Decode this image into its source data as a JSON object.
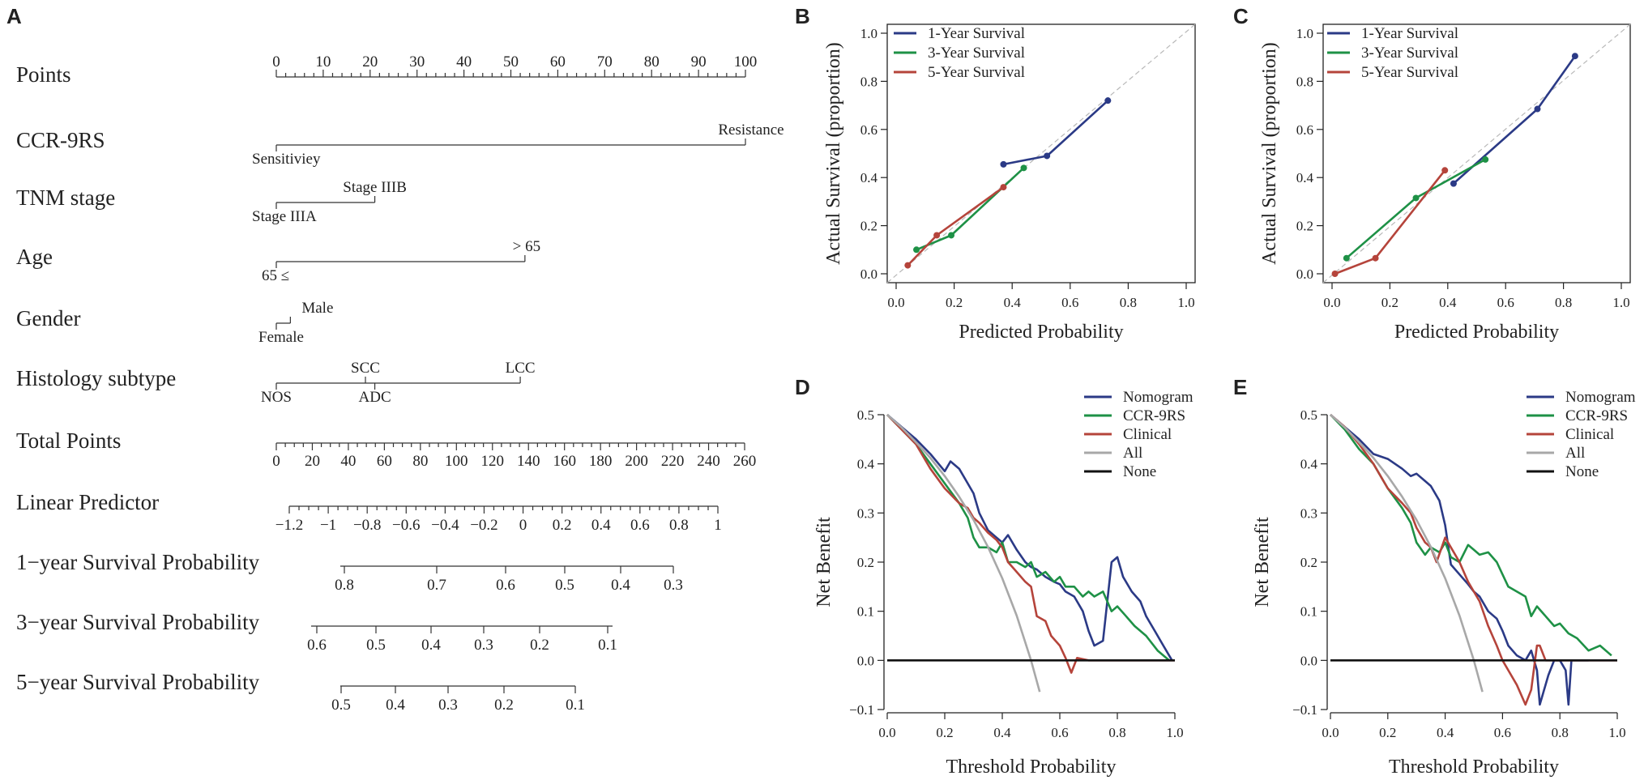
{
  "panel_letters": [
    "A",
    "B",
    "C",
    "D",
    "E"
  ],
  "chart_data": [
    {
      "panel": "A",
      "type": "nomogram",
      "rows": [
        {
          "label": "Points",
          "min": 0,
          "max": 100,
          "ticks": [
            "0",
            "10",
            "20",
            "30",
            "40",
            "50",
            "60",
            "70",
            "80",
            "90",
            "100"
          ]
        },
        {
          "label": "CCR-9RS",
          "levels": [
            {
              "name": "Sensitiviey",
              "points": 0
            },
            {
              "name": "Resistance",
              "points": 100
            }
          ]
        },
        {
          "label": "TNM stage",
          "levels": [
            {
              "name": "Stage IIIA",
              "points": 0
            },
            {
              "name": "Stage IIIB",
              "points": 21
            }
          ]
        },
        {
          "label": "Age",
          "levels": [
            {
              "name": "65 ≤",
              "points": 0
            },
            {
              "name": "> 65",
              "points": 53
            }
          ]
        },
        {
          "label": "Gender",
          "levels": [
            {
              "name": "Female",
              "points": 0
            },
            {
              "name": "Male",
              "points": 3
            }
          ]
        },
        {
          "label": "Histology subtype",
          "levels": [
            {
              "name": "NOS",
              "points": 0
            },
            {
              "name": "SCC",
              "points": 19
            },
            {
              "name": "ADC",
              "points": 21
            },
            {
              "name": "LCC",
              "points": 52
            }
          ]
        },
        {
          "label": "Total Points",
          "min": 0,
          "max": 260,
          "ticks": [
            "0",
            "20",
            "40",
            "60",
            "80",
            "100",
            "120",
            "140",
            "160",
            "180",
            "200",
            "220",
            "240",
            "260"
          ]
        },
        {
          "label": "Linear Predictor",
          "ticks": [
            "−1.2",
            "−1",
            "−0.8",
            "−0.6",
            "−0.4",
            "−0.2",
            "0",
            "0.2",
            "0.4",
            "0.6",
            "0.8",
            "1"
          ]
        },
        {
          "label": "1−year Survival Probability",
          "ticks": [
            "0.8",
            "0.7",
            "0.6",
            "0.5",
            "0.4",
            "0.3"
          ]
        },
        {
          "label": "3−year Survival Probability",
          "ticks": [
            "0.6",
            "0.5",
            "0.4",
            "0.3",
            "0.2",
            "0.1"
          ]
        },
        {
          "label": "5−year Survival Probability",
          "ticks": [
            "0.5",
            "0.4",
            "0.3",
            "0.2",
            "0.1"
          ]
        }
      ]
    },
    {
      "panel": "B",
      "type": "line",
      "title": "",
      "xlabel": "Predicted Probability",
      "ylabel": "Actual Survival (proportion)",
      "xlim": [
        0,
        1
      ],
      "ylim": [
        0,
        1
      ],
      "xticks": [
        "0.0",
        "0.2",
        "0.4",
        "0.6",
        "0.8",
        "1.0"
      ],
      "yticks": [
        "0.0",
        "0.2",
        "0.4",
        "0.6",
        "0.8",
        "1.0"
      ],
      "legend": "top-left",
      "reference_line": "diagonal",
      "series": [
        {
          "name": "1-Year Survival",
          "color": "#2b3a86",
          "x": [
            0.37,
            0.52,
            0.73
          ],
          "y": [
            0.455,
            0.49,
            0.72
          ]
        },
        {
          "name": "3-Year Survival",
          "color": "#1e9146",
          "x": [
            0.07,
            0.19,
            0.44
          ],
          "y": [
            0.1,
            0.16,
            0.44
          ]
        },
        {
          "name": "5-Year Survival",
          "color": "#b5443b",
          "x": [
            0.04,
            0.14,
            0.37
          ],
          "y": [
            0.035,
            0.16,
            0.36
          ]
        }
      ]
    },
    {
      "panel": "C",
      "type": "line",
      "title": "",
      "xlabel": "Predicted Probability",
      "ylabel": "Actual Survival (proportion)",
      "xlim": [
        0,
        1
      ],
      "ylim": [
        0,
        1
      ],
      "xticks": [
        "0.0",
        "0.2",
        "0.4",
        "0.6",
        "0.8",
        "1.0"
      ],
      "yticks": [
        "0.0",
        "0.2",
        "0.4",
        "0.6",
        "0.8",
        "1.0"
      ],
      "legend": "top-left",
      "reference_line": "diagonal",
      "series": [
        {
          "name": "1-Year Survival",
          "color": "#2b3a86",
          "x": [
            0.42,
            0.71,
            0.84
          ],
          "y": [
            0.375,
            0.685,
            0.905
          ]
        },
        {
          "name": "3-Year Survival",
          "color": "#1e9146",
          "x": [
            0.05,
            0.29,
            0.53
          ],
          "y": [
            0.065,
            0.315,
            0.475
          ]
        },
        {
          "name": "5-Year Survival",
          "color": "#b5443b",
          "x": [
            0.01,
            0.15,
            0.39
          ],
          "y": [
            0.0,
            0.065,
            0.43
          ]
        }
      ]
    },
    {
      "panel": "D",
      "type": "line",
      "title": "",
      "xlabel": "Threshold Probability",
      "ylabel": "Net Benefit",
      "xlim": [
        0,
        1
      ],
      "ylim": [
        -0.1,
        0.5
      ],
      "xticks": [
        "0.0",
        "0.2",
        "0.4",
        "0.6",
        "0.8",
        "1.0"
      ],
      "yticks": [
        "−0.1",
        "0.0",
        "0.1",
        "0.2",
        "0.3",
        "0.4",
        "0.5"
      ],
      "legend": "top-right",
      "series": [
        {
          "name": "Nomogram",
          "color": "#2b3a86",
          "x": [
            0,
            0.05,
            0.1,
            0.15,
            0.2,
            0.22,
            0.25,
            0.28,
            0.3,
            0.32,
            0.35,
            0.38,
            0.4,
            0.42,
            0.45,
            0.48,
            0.5,
            0.52,
            0.55,
            0.58,
            0.6,
            0.62,
            0.65,
            0.68,
            0.7,
            0.72,
            0.75,
            0.78,
            0.8,
            0.82,
            0.85,
            0.88,
            0.9,
            0.93,
            0.96,
            0.99
          ],
          "y": [
            0.5,
            0.475,
            0.45,
            0.42,
            0.385,
            0.405,
            0.39,
            0.36,
            0.34,
            0.3,
            0.265,
            0.25,
            0.24,
            0.255,
            0.225,
            0.2,
            0.19,
            0.185,
            0.17,
            0.16,
            0.155,
            0.14,
            0.13,
            0.1,
            0.06,
            0.03,
            0.04,
            0.2,
            0.21,
            0.17,
            0.14,
            0.12,
            0.09,
            0.06,
            0.03,
            0.0
          ]
        },
        {
          "name": "CCR-9RS",
          "color": "#1e9146",
          "x": [
            0,
            0.05,
            0.1,
            0.15,
            0.2,
            0.25,
            0.28,
            0.3,
            0.32,
            0.35,
            0.38,
            0.4,
            0.42,
            0.45,
            0.48,
            0.5,
            0.52,
            0.55,
            0.58,
            0.6,
            0.62,
            0.65,
            0.68,
            0.7,
            0.72,
            0.75,
            0.78,
            0.8,
            0.83,
            0.86,
            0.9,
            0.94,
            0.98
          ],
          "y": [
            0.5,
            0.47,
            0.44,
            0.4,
            0.36,
            0.32,
            0.29,
            0.25,
            0.23,
            0.23,
            0.22,
            0.24,
            0.2,
            0.2,
            0.19,
            0.2,
            0.17,
            0.18,
            0.16,
            0.17,
            0.15,
            0.15,
            0.13,
            0.14,
            0.13,
            0.14,
            0.1,
            0.11,
            0.09,
            0.07,
            0.05,
            0.02,
            0.0
          ]
        },
        {
          "name": "Clinical",
          "color": "#b5443b",
          "x": [
            0,
            0.05,
            0.1,
            0.15,
            0.2,
            0.25,
            0.28,
            0.3,
            0.32,
            0.35,
            0.38,
            0.4,
            0.42,
            0.45,
            0.48,
            0.5,
            0.52,
            0.55,
            0.57,
            0.6,
            0.62,
            0.64,
            0.66,
            0.7,
            0.75,
            0.8,
            0.9,
            1.0
          ],
          "y": [
            0.5,
            0.47,
            0.44,
            0.39,
            0.35,
            0.32,
            0.31,
            0.29,
            0.28,
            0.26,
            0.245,
            0.23,
            0.2,
            0.18,
            0.16,
            0.15,
            0.09,
            0.08,
            0.05,
            0.03,
            0.005,
            -0.025,
            0.005,
            0.0,
            0.0,
            0.0,
            0.0,
            0.0
          ]
        },
        {
          "name": "All",
          "color": "#a8a8a8",
          "x": [
            0,
            0.05,
            0.1,
            0.15,
            0.2,
            0.25,
            0.3,
            0.35,
            0.4,
            0.45,
            0.5,
            0.53
          ],
          "y": [
            0.5,
            0.474,
            0.444,
            0.412,
            0.375,
            0.333,
            0.286,
            0.231,
            0.167,
            0.091,
            0.0,
            -0.064
          ]
        },
        {
          "name": "None",
          "color": "#111111",
          "x": [
            0,
            1.0
          ],
          "y": [
            0,
            0
          ]
        }
      ]
    },
    {
      "panel": "E",
      "type": "line",
      "title": "",
      "xlabel": "Threshold Probability",
      "ylabel": "Net Benefit",
      "xlim": [
        0,
        1
      ],
      "ylim": [
        -0.1,
        0.5
      ],
      "xticks": [
        "0.0",
        "0.2",
        "0.4",
        "0.6",
        "0.8",
        "1.0"
      ],
      "yticks": [
        "−0.1",
        "0.0",
        "0.1",
        "0.2",
        "0.3",
        "0.4",
        "0.5"
      ],
      "legend": "top-right",
      "series": [
        {
          "name": "Nomogram",
          "color": "#2b3a86",
          "x": [
            0,
            0.05,
            0.1,
            0.15,
            0.2,
            0.25,
            0.28,
            0.3,
            0.33,
            0.35,
            0.38,
            0.4,
            0.42,
            0.45,
            0.48,
            0.5,
            0.52,
            0.55,
            0.58,
            0.6,
            0.62,
            0.65,
            0.68,
            0.7,
            0.72,
            0.73,
            0.76,
            0.78,
            0.8,
            0.82,
            0.83,
            0.84,
            0.85,
            0.9
          ],
          "y": [
            0.5,
            0.475,
            0.45,
            0.42,
            0.41,
            0.39,
            0.375,
            0.38,
            0.365,
            0.355,
            0.325,
            0.275,
            0.195,
            0.175,
            0.155,
            0.14,
            0.13,
            0.1,
            0.085,
            0.06,
            0.03,
            0.01,
            0.0,
            0.02,
            -0.02,
            -0.09,
            -0.03,
            0.0,
            0.0,
            -0.02,
            -0.09,
            0.0,
            0.0,
            0.0
          ]
        },
        {
          "name": "CCR-9RS",
          "color": "#1e9146",
          "x": [
            0,
            0.05,
            0.1,
            0.15,
            0.2,
            0.25,
            0.28,
            0.3,
            0.33,
            0.35,
            0.38,
            0.4,
            0.42,
            0.45,
            0.48,
            0.5,
            0.52,
            0.55,
            0.58,
            0.6,
            0.62,
            0.65,
            0.68,
            0.7,
            0.72,
            0.75,
            0.78,
            0.8,
            0.83,
            0.86,
            0.9,
            0.94,
            0.98
          ],
          "y": [
            0.5,
            0.47,
            0.43,
            0.4,
            0.35,
            0.31,
            0.28,
            0.24,
            0.215,
            0.23,
            0.22,
            0.24,
            0.21,
            0.2,
            0.235,
            0.225,
            0.215,
            0.22,
            0.2,
            0.175,
            0.15,
            0.14,
            0.13,
            0.09,
            0.11,
            0.09,
            0.07,
            0.075,
            0.055,
            0.045,
            0.02,
            0.03,
            0.01
          ]
        },
        {
          "name": "Clinical",
          "color": "#b5443b",
          "x": [
            0,
            0.05,
            0.1,
            0.15,
            0.2,
            0.25,
            0.28,
            0.3,
            0.33,
            0.35,
            0.37,
            0.4,
            0.42,
            0.45,
            0.48,
            0.5,
            0.52,
            0.55,
            0.58,
            0.6,
            0.62,
            0.65,
            0.68,
            0.7,
            0.72,
            0.73,
            0.75,
            0.8,
            0.9,
            1.0
          ],
          "y": [
            0.5,
            0.475,
            0.44,
            0.4,
            0.35,
            0.32,
            0.3,
            0.27,
            0.24,
            0.23,
            0.2,
            0.25,
            0.23,
            0.2,
            0.16,
            0.14,
            0.12,
            0.07,
            0.03,
            0.0,
            -0.02,
            -0.05,
            -0.09,
            -0.06,
            0.03,
            0.03,
            0.0,
            0.0,
            0.0,
            0.0
          ]
        },
        {
          "name": "All",
          "color": "#a8a8a8",
          "x": [
            0,
            0.05,
            0.1,
            0.15,
            0.2,
            0.25,
            0.3,
            0.35,
            0.4,
            0.45,
            0.5,
            0.53
          ],
          "y": [
            0.5,
            0.474,
            0.444,
            0.412,
            0.375,
            0.333,
            0.286,
            0.231,
            0.167,
            0.091,
            0.0,
            -0.064
          ]
        },
        {
          "name": "None",
          "color": "#111111",
          "x": [
            0,
            1.0
          ],
          "y": [
            0,
            0
          ]
        }
      ]
    }
  ]
}
